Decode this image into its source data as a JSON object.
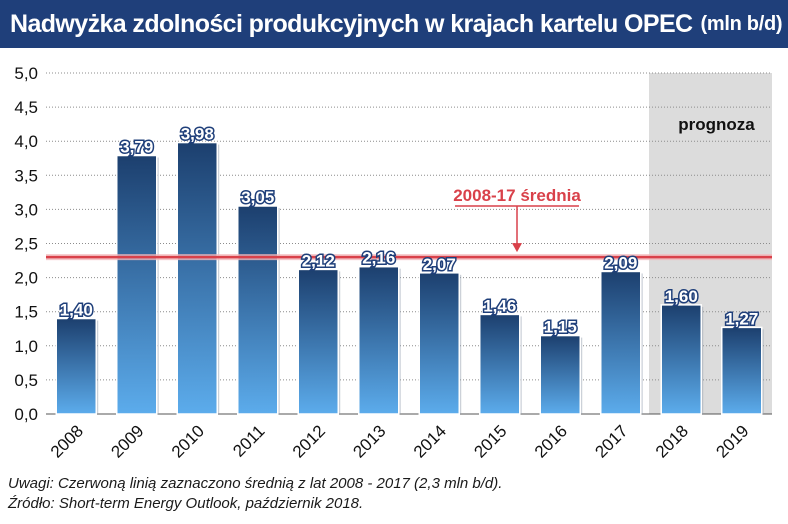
{
  "header": {
    "title": "Nadwyżka zdolności produkcyjnych w krajach kartelu OPEC",
    "unit": "(mln b/d)"
  },
  "footer": {
    "note": "Uwagi: Czerwoną linią zaznaczono średnią z lat 2008 - 2017 (2,3 mln b/d).",
    "source": "Źródło: Short-term Energy Outlook, październik 2018."
  },
  "chart_data": {
    "type": "bar",
    "title": "Nadwyżka zdolności produkcyjnych w krajach kartelu OPEC",
    "ylabel": "",
    "xlabel": "",
    "ylim": [
      0,
      5
    ],
    "yticks": [
      "0,0",
      "0,5",
      "1,0",
      "1,5",
      "2,0",
      "2,5",
      "3,0",
      "3,5",
      "4,0",
      "4,5",
      "5,0"
    ],
    "categories": [
      "2008",
      "2009",
      "2010",
      "2011",
      "2012",
      "2013",
      "2014",
      "2015",
      "2016",
      "2017",
      "2018",
      "2019"
    ],
    "values": [
      1.4,
      3.79,
      3.98,
      3.05,
      2.12,
      2.16,
      2.07,
      1.46,
      1.15,
      2.09,
      1.6,
      1.27
    ],
    "value_labels": [
      "1,40",
      "3,79",
      "3,98",
      "3,05",
      "2,12",
      "2,16",
      "2,07",
      "1,46",
      "1,15",
      "2,09",
      "1,60",
      "1,27"
    ],
    "average": {
      "value": 2.3,
      "label": "2008-17 średnia"
    },
    "forecast": {
      "label": "prognoza",
      "categories": [
        "2018",
        "2019"
      ]
    },
    "grid": true,
    "colors": {
      "bar_top": "#1c3f6e",
      "bar_bottom": "#5cacec",
      "average_line": "#d9414a",
      "forecast_bg": "#dcdcdc",
      "title_bg": "#1f3f7a"
    }
  }
}
